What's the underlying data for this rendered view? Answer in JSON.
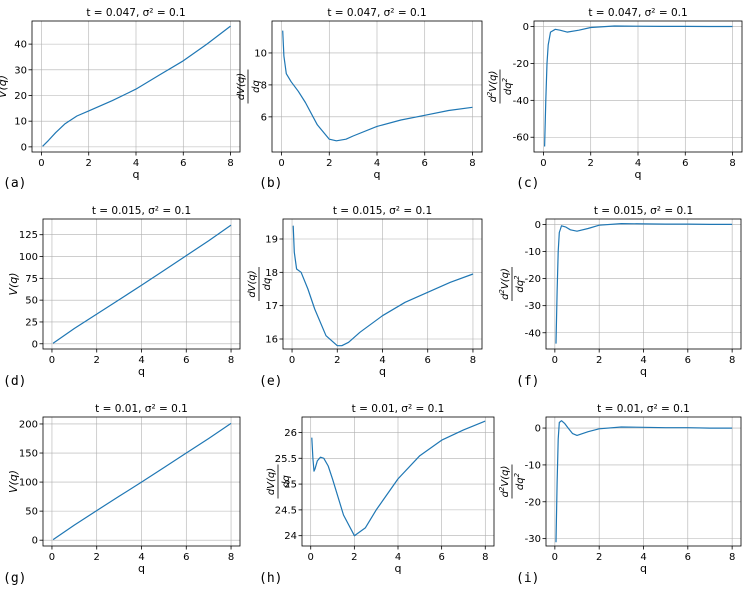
{
  "figure": {
    "panel_labels": [
      "(a)",
      "(b)",
      "(c)",
      "(d)",
      "(e)",
      "(f)",
      "(g)",
      "(h)",
      "(i)"
    ]
  },
  "chart_data": [
    {
      "type": "line",
      "title": "t = 0.047, σ² = 0.1",
      "xlabel": "q",
      "ylabel": "V(q)",
      "xlim": [
        -0.4,
        8.4
      ],
      "ylim": [
        -2,
        49
      ],
      "xticks": [
        0,
        2,
        4,
        6,
        8
      ],
      "yticks": [
        0,
        10,
        20,
        30,
        40
      ],
      "grid": true,
      "color": "#1f77b4",
      "series": [
        {
          "x": [
            0.05,
            0.3,
            0.6,
            1.0,
            1.5,
            2.0,
            3.0,
            4.0,
            5.0,
            6.0,
            7.0,
            8.0
          ],
          "y": [
            0.2,
            2.5,
            5.5,
            9.0,
            12.0,
            14.0,
            18.0,
            22.5,
            28.0,
            33.5,
            40.0,
            47.0
          ]
        }
      ]
    },
    {
      "type": "line",
      "title": "t = 0.047, σ² = 0.1",
      "xlabel": "q",
      "ylabel": "dV(q)/dq",
      "xlim": [
        -0.4,
        8.4
      ],
      "ylim": [
        3.8,
        12
      ],
      "xticks": [
        0,
        2,
        4,
        6,
        8
      ],
      "yticks": [
        6,
        8,
        10
      ],
      "grid": true,
      "color": "#1f77b4",
      "series": [
        {
          "x": [
            0.05,
            0.1,
            0.2,
            0.4,
            0.7,
            1.0,
            1.5,
            2.0,
            2.3,
            2.7,
            3.0,
            4.0,
            5.0,
            6.0,
            7.0,
            8.0
          ],
          "y": [
            11.4,
            9.8,
            8.7,
            8.2,
            7.6,
            6.9,
            5.5,
            4.6,
            4.5,
            4.6,
            4.8,
            5.4,
            5.8,
            6.1,
            6.4,
            6.6
          ]
        }
      ]
    },
    {
      "type": "line",
      "title": "t = 0.047, σ² = 0.1",
      "xlabel": "q",
      "ylabel": "d²V(q)/dq²",
      "xlim": [
        -0.4,
        8.4
      ],
      "ylim": [
        -68,
        3
      ],
      "xticks": [
        0,
        2,
        4,
        6,
        8
      ],
      "yticks": [
        -60,
        -40,
        -20,
        0
      ],
      "grid": true,
      "color": "#1f77b4",
      "series": [
        {
          "x": [
            0.05,
            0.1,
            0.15,
            0.2,
            0.3,
            0.5,
            0.7,
            1.0,
            1.5,
            2.0,
            3.0,
            4.0,
            5.0,
            6.0,
            7.0,
            8.0
          ],
          "y": [
            -65,
            -40,
            -20,
            -10,
            -3,
            -1.5,
            -2,
            -3,
            -2,
            -0.5,
            0.3,
            0.2,
            0.1,
            0.1,
            0.0,
            0.0
          ]
        }
      ]
    },
    {
      "type": "line",
      "title": "t = 0.015, σ² = 0.1",
      "xlabel": "q",
      "ylabel": "V(q)",
      "xlim": [
        -0.4,
        8.4
      ],
      "ylim": [
        -6,
        143
      ],
      "xticks": [
        0,
        2,
        4,
        6,
        8
      ],
      "yticks": [
        0,
        25,
        50,
        75,
        100,
        125
      ],
      "grid": true,
      "color": "#1f77b4",
      "series": [
        {
          "x": [
            0.05,
            1.0,
            2.0,
            3.0,
            4.0,
            5.0,
            6.0,
            7.0,
            8.0
          ],
          "y": [
            0.5,
            17.5,
            34,
            50.5,
            67,
            84,
            101,
            118,
            136
          ]
        }
      ]
    },
    {
      "type": "line",
      "title": "t = 0.015, σ² = 0.1",
      "xlabel": "q",
      "ylabel": "dV(q)/dq",
      "xlim": [
        -0.4,
        8.4
      ],
      "ylim": [
        15.7,
        19.6
      ],
      "xticks": [
        0,
        2,
        4,
        6,
        8
      ],
      "yticks": [
        16,
        17,
        18,
        19
      ],
      "grid": true,
      "color": "#1f77b4",
      "series": [
        {
          "x": [
            0.05,
            0.1,
            0.2,
            0.4,
            0.7,
            1.0,
            1.5,
            2.0,
            2.2,
            2.5,
            3.0,
            4.0,
            5.0,
            6.0,
            7.0,
            8.0
          ],
          "y": [
            19.4,
            18.6,
            18.1,
            18.0,
            17.5,
            16.9,
            16.1,
            15.8,
            15.8,
            15.9,
            16.2,
            16.7,
            17.1,
            17.4,
            17.7,
            17.95
          ]
        }
      ]
    },
    {
      "type": "line",
      "title": "t = 0.015, σ² = 0.1",
      "xlabel": "q",
      "ylabel": "d²V(q)/dq²",
      "xlim": [
        -0.4,
        8.4
      ],
      "ylim": [
        -46,
        2
      ],
      "xticks": [
        0,
        2,
        4,
        6,
        8
      ],
      "yticks": [
        -40,
        -30,
        -20,
        -10,
        0
      ],
      "grid": true,
      "color": "#1f77b4",
      "series": [
        {
          "x": [
            0.05,
            0.1,
            0.15,
            0.2,
            0.3,
            0.5,
            0.7,
            1.0,
            1.5,
            2.0,
            3.0,
            4.0,
            5.0,
            6.0,
            7.0,
            8.0
          ],
          "y": [
            -44,
            -25,
            -10,
            -3,
            -0.5,
            -1,
            -2,
            -2.5,
            -1.5,
            -0.3,
            0.3,
            0.2,
            0.1,
            0.1,
            0.0,
            0.0
          ]
        }
      ]
    },
    {
      "type": "line",
      "title": "t = 0.01, σ² = 0.1",
      "xlabel": "q",
      "ylabel": "V(q)",
      "xlim": [
        -0.4,
        8.4
      ],
      "ylim": [
        -10,
        212
      ],
      "xticks": [
        0,
        2,
        4,
        6,
        8
      ],
      "yticks": [
        0,
        50,
        100,
        150,
        200
      ],
      "grid": true,
      "color": "#1f77b4",
      "series": [
        {
          "x": [
            0.05,
            1.0,
            2.0,
            3.0,
            4.0,
            5.0,
            6.0,
            7.0,
            8.0
          ],
          "y": [
            1,
            26,
            51,
            75.5,
            100,
            125,
            150,
            175,
            201
          ]
        }
      ]
    },
    {
      "type": "line",
      "title": "t = 0.01, σ² = 0.1",
      "xlabel": "q",
      "ylabel": "dV(q)/dq",
      "xlim": [
        -0.4,
        8.4
      ],
      "ylim": [
        23.8,
        26.3
      ],
      "xticks": [
        0,
        2,
        4,
        6,
        8
      ],
      "yticks": [
        24.0,
        24.5,
        25.0,
        25.5,
        26.0
      ],
      "grid": true,
      "color": "#1f77b4",
      "series": [
        {
          "x": [
            0.05,
            0.1,
            0.15,
            0.2,
            0.3,
            0.45,
            0.6,
            0.8,
            1.0,
            1.5,
            2.0,
            2.5,
            3.0,
            4.0,
            5.0,
            6.0,
            7.0,
            8.0
          ],
          "y": [
            25.9,
            25.5,
            25.25,
            25.3,
            25.45,
            25.52,
            25.5,
            25.35,
            25.1,
            24.4,
            24.0,
            24.15,
            24.5,
            25.1,
            25.55,
            25.85,
            26.05,
            26.22
          ]
        }
      ]
    },
    {
      "type": "line",
      "title": "t = 0.01, σ² = 0.1",
      "xlabel": "q",
      "ylabel": "d²V(q)/dq²",
      "xlim": [
        -0.4,
        8.4
      ],
      "ylim": [
        -32,
        3
      ],
      "xticks": [
        0,
        2,
        4,
        6,
        8
      ],
      "yticks": [
        -30,
        -20,
        -10,
        0
      ],
      "grid": true,
      "color": "#1f77b4",
      "series": [
        {
          "x": [
            0.05,
            0.1,
            0.15,
            0.2,
            0.3,
            0.45,
            0.6,
            0.8,
            1.0,
            1.5,
            2.0,
            3.0,
            4.0,
            5.0,
            6.0,
            7.0,
            8.0
          ],
          "y": [
            -31,
            -15,
            -3,
            1.5,
            2.0,
            1.2,
            0,
            -1.5,
            -2,
            -1,
            -0.2,
            0.3,
            0.2,
            0.1,
            0.1,
            0.0,
            0.0
          ]
        }
      ]
    }
  ]
}
